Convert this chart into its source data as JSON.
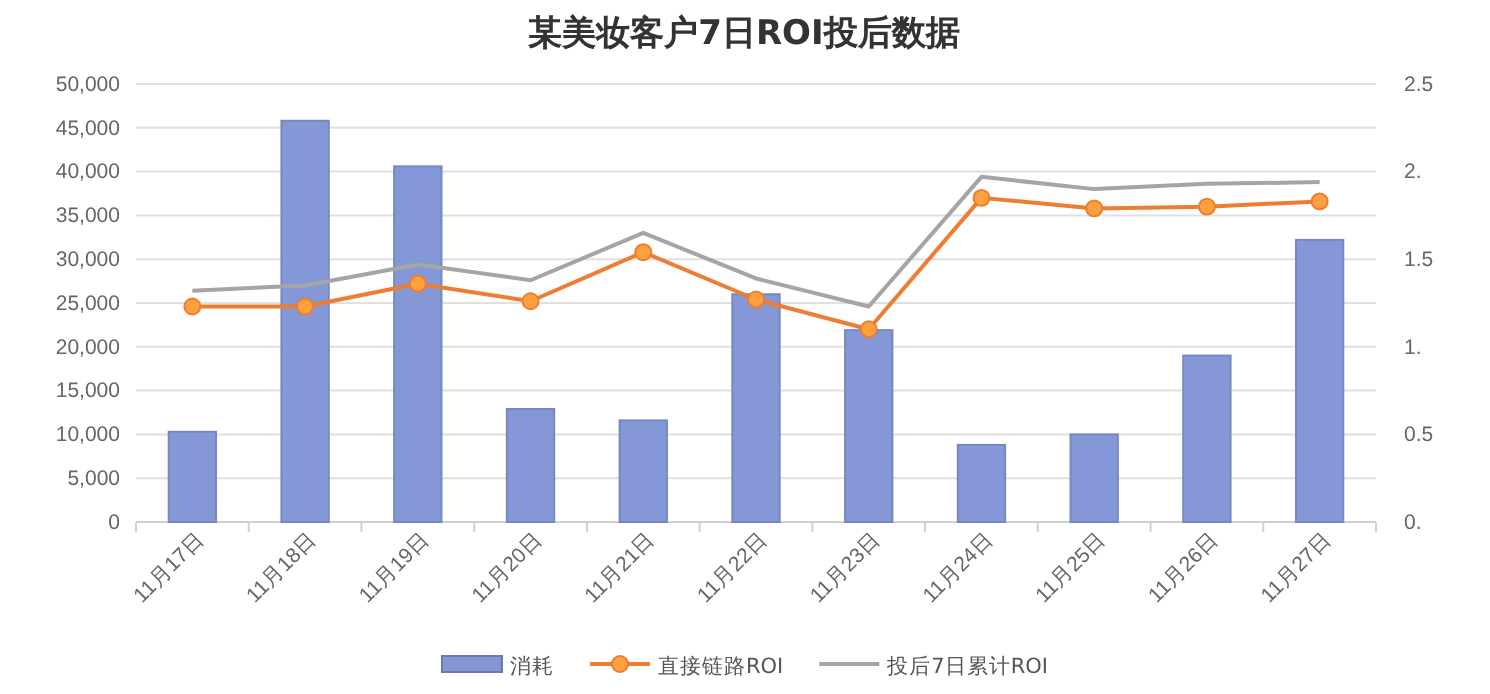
{
  "chart_data": {
    "type": "bar",
    "title": "某美妆客户7日ROI投后数据",
    "categories": [
      "11月17日",
      "11月18日",
      "11月19日",
      "11月20日",
      "11月21日",
      "11月22日",
      "11月23日",
      "11月24日",
      "11月25日",
      "11月26日",
      "11月27日"
    ],
    "series": [
      {
        "name": "消耗",
        "color": "#8497d6",
        "values": [
          10300,
          45800,
          40600,
          12900,
          11600,
          26000,
          21900,
          8800,
          10000,
          19000,
          32200
        ]
      },
      {
        "name": "直接链路ROI",
        "type": "line",
        "axis": "y2",
        "color": "#ed7d31",
        "marker": "circle",
        "values": [
          1.23,
          1.23,
          1.36,
          1.26,
          1.54,
          1.27,
          1.1,
          1.85,
          1.79,
          1.8,
          1.83
        ]
      },
      {
        "name": "投后7日累计ROI",
        "type": "line",
        "axis": "y2",
        "color": "#a5a5a5",
        "marker": "none",
        "values": [
          1.32,
          1.35,
          1.47,
          1.38,
          1.65,
          1.39,
          1.23,
          1.97,
          1.9,
          1.93,
          1.94
        ]
      }
    ],
    "ylim": [
      0,
      50000
    ],
    "yticks": [
      {
        "value": 0,
        "label": "0"
      },
      {
        "value": 5000,
        "label": "5,000"
      },
      {
        "value": 10000,
        "label": "10,000"
      },
      {
        "value": 15000,
        "label": "15,000"
      },
      {
        "value": 20000,
        "label": "20,000"
      },
      {
        "value": 25000,
        "label": "25,000"
      },
      {
        "value": 30000,
        "label": "30,000"
      },
      {
        "value": 35000,
        "label": "35,000"
      },
      {
        "value": 40000,
        "label": "40,000"
      },
      {
        "value": 45000,
        "label": "45,000"
      },
      {
        "value": 50000,
        "label": "50,000"
      }
    ],
    "y2lim": [
      0,
      2.5
    ],
    "y2ticks": [
      {
        "value": 0,
        "label": "0."
      },
      0.5,
      {
        "value": 1,
        "label": "1."
      },
      1.5,
      {
        "value": 2,
        "label": "2."
      },
      2.5
    ],
    "grid": "y",
    "legend": "bottom"
  }
}
